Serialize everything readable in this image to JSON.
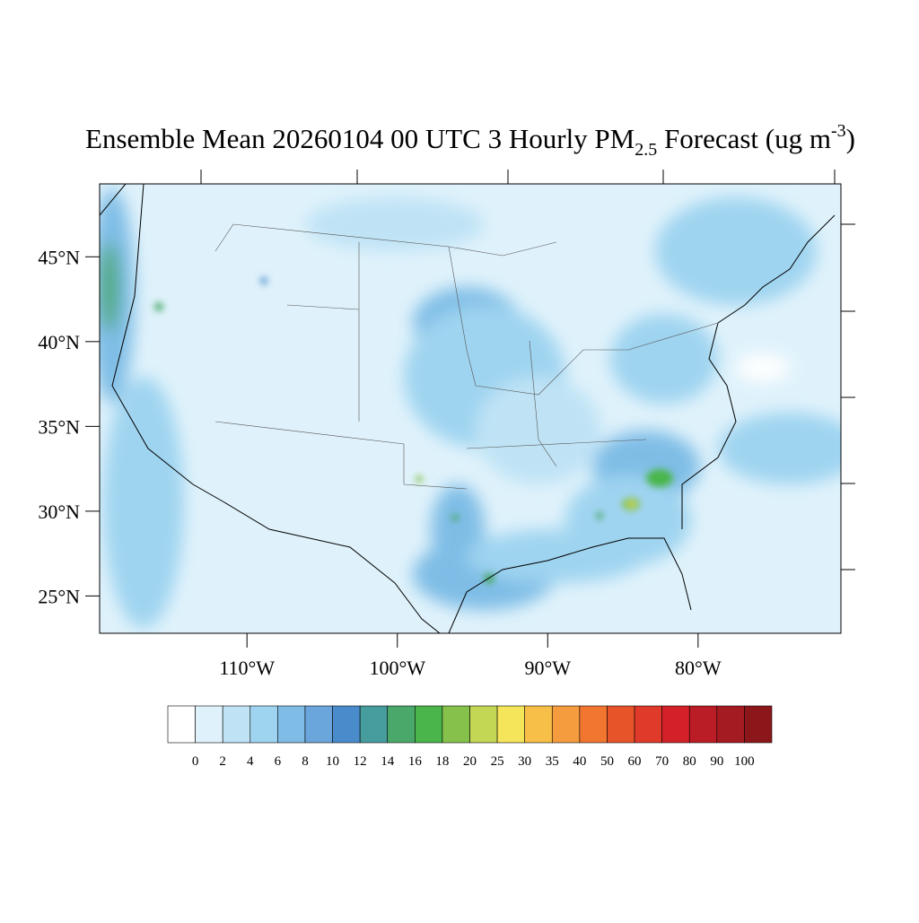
{
  "map": {
    "title": {
      "main": "Ensemble Mean 20260104 00 UTC 3 Hourly PM",
      "subscript": "2.5",
      "middle": " Forecast (ug m",
      "superscript": "-3",
      "end": ")"
    },
    "xlim": [
      -119.8,
      -70.5
    ],
    "ylim": [
      22.8,
      49.3
    ],
    "yticks": [
      {
        "value": 45,
        "label": "45°N"
      },
      {
        "value": 40,
        "label": "40°N"
      },
      {
        "value": 35,
        "label": "35°N"
      },
      {
        "value": 30,
        "label": "30°N"
      },
      {
        "value": 25,
        "label": "25°N"
      }
    ],
    "xticks": [
      {
        "value": -110,
        "label": "110°W"
      },
      {
        "value": -100,
        "label": "100°W"
      },
      {
        "value": -90,
        "label": "90°W"
      },
      {
        "value": -80,
        "label": "80°W"
      }
    ],
    "background_color": "#dff2fb",
    "colorbar": {
      "levels": [
        0,
        2,
        4,
        6,
        8,
        10,
        12,
        14,
        16,
        18,
        20,
        25,
        30,
        35,
        40,
        50,
        60,
        70,
        80,
        90,
        100
      ],
      "colors": [
        "#ffffff",
        "#dff2fb",
        "#bfe3f5",
        "#9fd4f0",
        "#7fbde6",
        "#6aa6db",
        "#4a8ccb",
        "#479c9e",
        "#4aa86b",
        "#4ab54a",
        "#86c24b",
        "#c3d755",
        "#f5e55a",
        "#f7bf48",
        "#f59c3e",
        "#f27630",
        "#e8542a",
        "#e03a2a",
        "#d42029",
        "#bb1d26",
        "#a51b22",
        "#8c171b"
      ]
    }
  }
}
